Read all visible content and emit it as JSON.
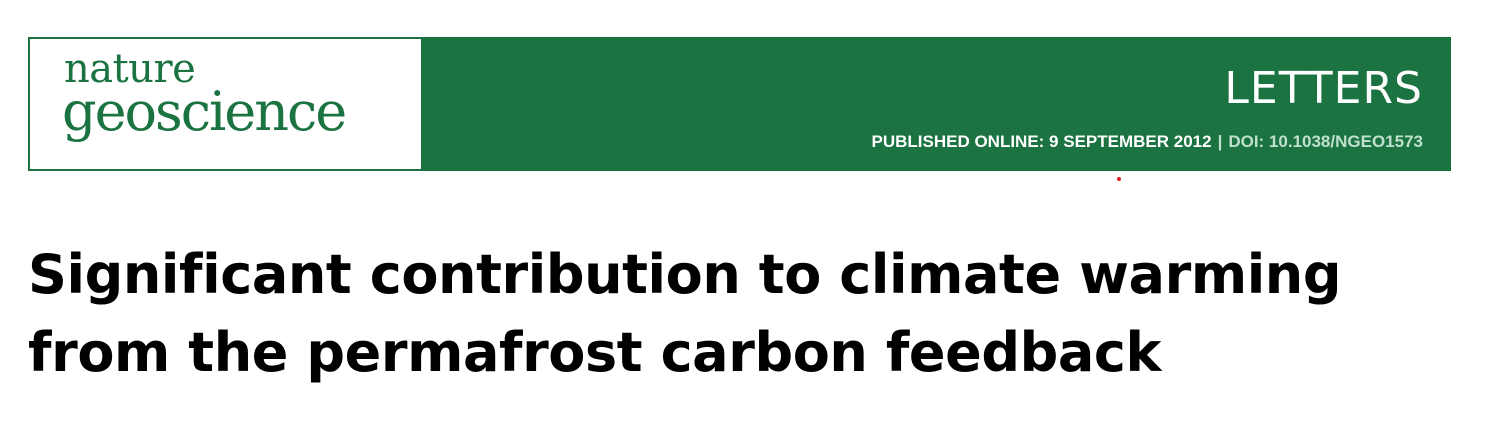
{
  "journal": {
    "name_line1": "nature",
    "name_line2": "geoscience"
  },
  "banner": {
    "section": "LETTERS",
    "published_label": "PUBLISHED ONLINE: 9 SEPTEMBER 2012",
    "separator": "|",
    "doi": "DOI: 10.1038/NGEO1573",
    "color": "#1a7340"
  },
  "article": {
    "title": "Significant contribution to climate warming from the permafrost carbon feedback"
  }
}
